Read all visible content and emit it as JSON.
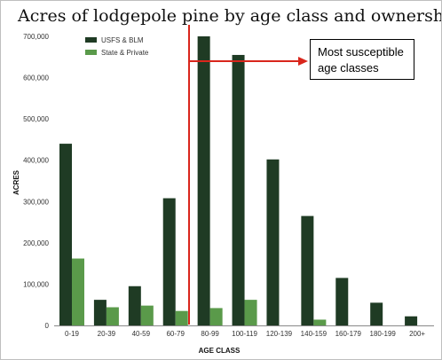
{
  "chart_data": {
    "type": "bar",
    "title": "Acres of lodgepole pine by age class and ownership",
    "xlabel": "AGE CLASS",
    "ylabel": "ACRES",
    "ylim": [
      0,
      700000
    ],
    "yticks": [
      0,
      100000,
      200000,
      300000,
      400000,
      500000,
      600000,
      700000
    ],
    "ytick_labels": [
      "0",
      "100,000",
      "200,000",
      "300,000",
      "400,000",
      "500,000",
      "600,000",
      "700,000"
    ],
    "categories": [
      "0-19",
      "20-39",
      "40-59",
      "60-79",
      "80-99",
      "100-119",
      "120-139",
      "140-159",
      "160-179",
      "180-199",
      "200+"
    ],
    "series": [
      {
        "name": "USFS & BLM",
        "color": "#1f3b24",
        "values": [
          440000,
          62000,
          95000,
          308000,
          700000,
          655000,
          402000,
          265000,
          115000,
          55000,
          22000
        ]
      },
      {
        "name": "State & Private",
        "color": "#5a9a4a",
        "values": [
          162000,
          44000,
          48000,
          35000,
          42000,
          62000,
          0,
          14000,
          0,
          0,
          0
        ]
      }
    ],
    "grid": false,
    "legend_position": "top-left",
    "annotation": {
      "text_lines": [
        "Most susceptible",
        "age classes"
      ],
      "marker_color": "#d9261c",
      "start_category": "80-99"
    }
  }
}
